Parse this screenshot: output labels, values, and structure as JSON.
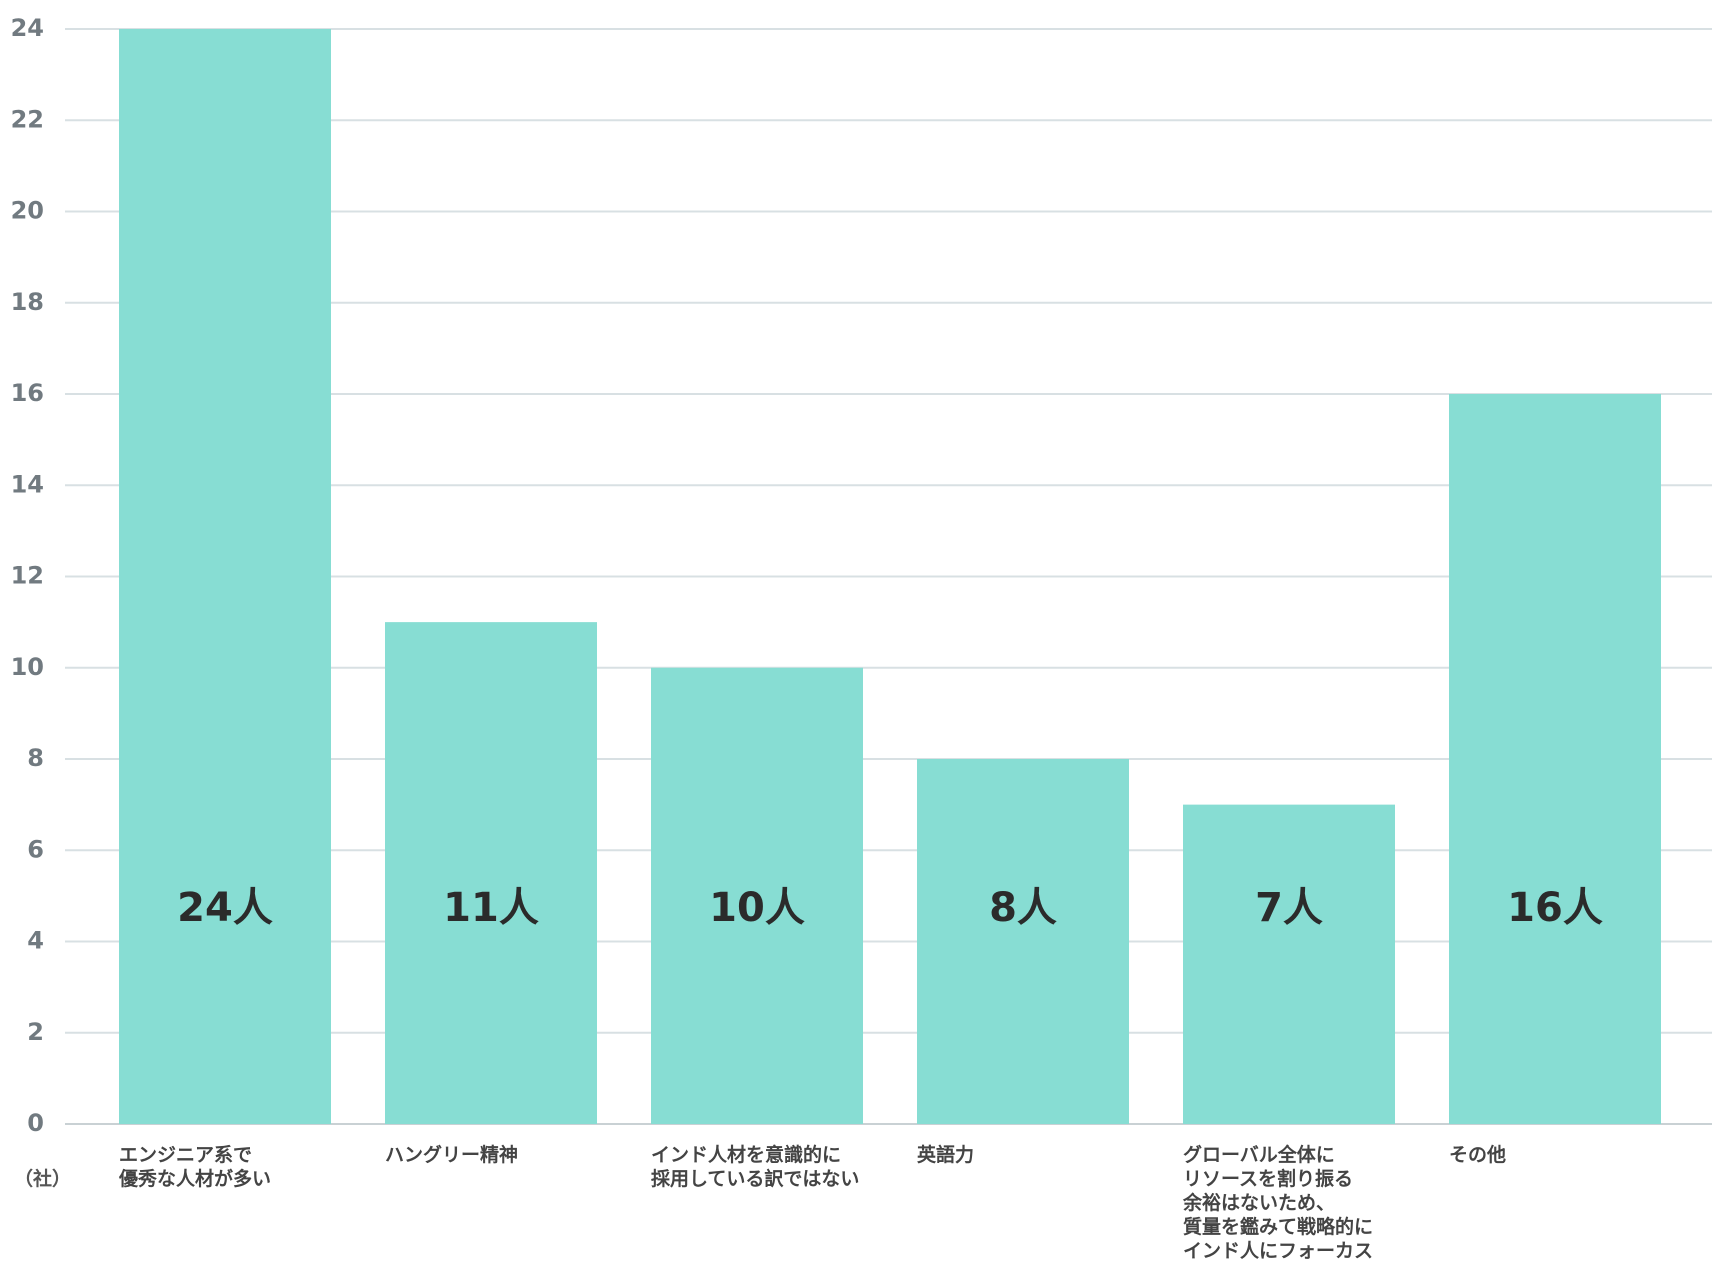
{
  "chart_data": {
    "type": "bar",
    "title": "",
    "xlabel": "",
    "ylabel": "",
    "y_unit_label": "（社）",
    "ylim": [
      0,
      24
    ],
    "yticks": [
      0,
      2,
      4,
      6,
      8,
      10,
      12,
      14,
      16,
      18,
      20,
      22,
      24
    ],
    "grid": true,
    "legend": "none",
    "bar_color": "#87ddd3",
    "categories": [
      [
        "エンジニア系で",
        "優秀な人材が多い"
      ],
      [
        "ハングリー精神"
      ],
      [
        "インド人材を意識的に",
        "採用している訳ではない"
      ],
      [
        "英語力"
      ],
      [
        "グローバル全体に",
        "リソースを割り振る",
        "余裕はないため、",
        "質量を鑑みて戦略的に",
        "インド人にフォーカス"
      ],
      [
        "その他"
      ]
    ],
    "values": [
      24,
      11,
      10,
      8,
      7,
      16
    ],
    "data_labels": [
      "24人",
      "11人",
      "10人",
      "8人",
      "7人",
      "16人"
    ]
  }
}
